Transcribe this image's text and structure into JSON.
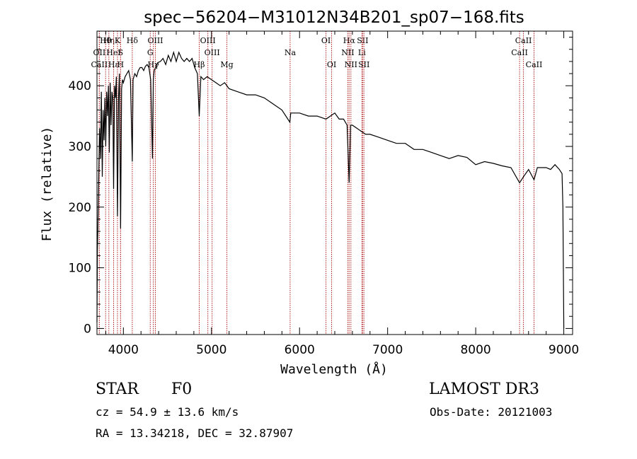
{
  "chart_data": {
    "type": "line",
    "title": "spec−56204−M31012N34B201_sp07−168.fits",
    "xlabel": "Wavelength (Å)",
    "ylabel": "Flux (relative)",
    "xlim": [
      3700,
      9100
    ],
    "ylim": [
      -10,
      490
    ],
    "xticks": [
      4000,
      5000,
      6000,
      7000,
      8000,
      9000
    ],
    "yticks": [
      0,
      100,
      200,
      300,
      400
    ],
    "series": [
      {
        "name": "flux",
        "x": [
          3700,
          3705,
          3710,
          3720,
          3730,
          3740,
          3750,
          3760,
          3770,
          3780,
          3790,
          3800,
          3810,
          3820,
          3830,
          3840,
          3850,
          3860,
          3870,
          3880,
          3889,
          3900,
          3910,
          3920,
          3933,
          3945,
          3955,
          3968,
          3980,
          3990,
          4000,
          4020,
          4040,
          4060,
          4080,
          4101,
          4110,
          4130,
          4150,
          4170,
          4190,
          4210,
          4230,
          4250,
          4270,
          4290,
          4310,
          4330,
          4340,
          4350,
          4370,
          4390,
          4420,
          4450,
          4480,
          4510,
          4540,
          4570,
          4600,
          4630,
          4660,
          4690,
          4720,
          4750,
          4780,
          4810,
          4840,
          4861,
          4880,
          4910,
          4950,
          5000,
          5050,
          5100,
          5150,
          5200,
          5300,
          5400,
          5500,
          5600,
          5700,
          5800,
          5890,
          5900,
          6000,
          6100,
          6200,
          6300,
          6400,
          6450,
          6500,
          6540,
          6563,
          6580,
          6600,
          6650,
          6700,
          6750,
          6800,
          6900,
          7000,
          7100,
          7200,
          7300,
          7400,
          7500,
          7600,
          7700,
          7800,
          7900,
          8000,
          8100,
          8200,
          8300,
          8400,
          8498,
          8542,
          8600,
          8662,
          8700,
          8800,
          8850,
          8900,
          8950,
          8980,
          8990,
          9000
        ],
        "y": [
          10,
          130,
          160,
          250,
          330,
          280,
          390,
          250,
          360,
          310,
          380,
          300,
          390,
          350,
          400,
          290,
          405,
          335,
          390,
          380,
          230,
          400,
          380,
          415,
          185,
          380,
          420,
          165,
          395,
          410,
          405,
          415,
          420,
          425,
          410,
          275,
          410,
          420,
          415,
          425,
          430,
          430,
          425,
          432,
          435,
          430,
          410,
          280,
          410,
          425,
          432,
          438,
          440,
          445,
          435,
          450,
          440,
          455,
          440,
          455,
          445,
          440,
          445,
          440,
          445,
          430,
          420,
          350,
          415,
          410,
          415,
          410,
          405,
          400,
          405,
          395,
          390,
          385,
          385,
          380,
          370,
          360,
          340,
          355,
          355,
          350,
          350,
          345,
          355,
          345,
          345,
          335,
          240,
          335,
          335,
          330,
          325,
          320,
          320,
          315,
          310,
          305,
          305,
          295,
          295,
          290,
          285,
          280,
          285,
          282,
          270,
          275,
          272,
          268,
          265,
          240,
          250,
          262,
          245,
          265,
          265,
          262,
          270,
          262,
          255,
          200,
          0
        ]
      }
    ],
    "lines": [
      {
        "label": "Hθ",
        "x": 3798,
        "row": 0
      },
      {
        "label": "OII",
        "x": 3727,
        "row": 1
      },
      {
        "label": "CaII",
        "x": 3727,
        "row": 2
      },
      {
        "label": "Hη",
        "x": 3835,
        "row": 0
      },
      {
        "label": "HeI",
        "x": 3889,
        "row": 1
      },
      {
        "label": "Hε",
        "x": 3889,
        "row": 2
      },
      {
        "label": "K",
        "x": 3933,
        "row": 0
      },
      {
        "label": "S",
        "x": 3968,
        "row": 1
      },
      {
        "label": "H",
        "x": 3968,
        "row": 2
      },
      {
        "label": "Hδ",
        "x": 4101,
        "row": 0
      },
      {
        "label": "OIII",
        "x": 4363,
        "row": 0
      },
      {
        "label": "G",
        "x": 4305,
        "row": 1
      },
      {
        "label": "Hγ",
        "x": 4340,
        "row": 2
      },
      {
        "label": "OIII",
        "x": 4959,
        "row": 0
      },
      {
        "label": "OIII",
        "x": 5007,
        "row": 1
      },
      {
        "label": "Hβ",
        "x": 4861,
        "row": 2
      },
      {
        "label": "Mg",
        "x": 5175,
        "row": 2
      },
      {
        "label": "Na",
        "x": 5893,
        "row": 1
      },
      {
        "label": "OI",
        "x": 6300,
        "row": 0
      },
      {
        "label": "OI",
        "x": 6364,
        "row": 2
      },
      {
        "label": "Hα",
        "x": 6563,
        "row": 0
      },
      {
        "label": "NII",
        "x": 6548,
        "row": 1
      },
      {
        "label": "NII",
        "x": 6583,
        "row": 2
      },
      {
        "label": "SII",
        "x": 6716,
        "row": 0
      },
      {
        "label": "Li",
        "x": 6708,
        "row": 1
      },
      {
        "label": "SII",
        "x": 6731,
        "row": 2
      },
      {
        "label": "CaII",
        "x": 8542,
        "row": 0
      },
      {
        "label": "CaII",
        "x": 8498,
        "row": 1
      },
      {
        "label": "CaII",
        "x": 8662,
        "row": 2
      }
    ]
  },
  "info": {
    "class": "STAR",
    "subclass": "F0",
    "survey": "LAMOST DR3",
    "cz": "cz = 54.9 ± 13.6 km/s",
    "obs_date": "Obs-Date: 20121003",
    "radec": "RA =  13.34218, DEC =  32.87907"
  },
  "colors": {
    "line_marker": "#b22222",
    "spectrum": "#000000"
  }
}
